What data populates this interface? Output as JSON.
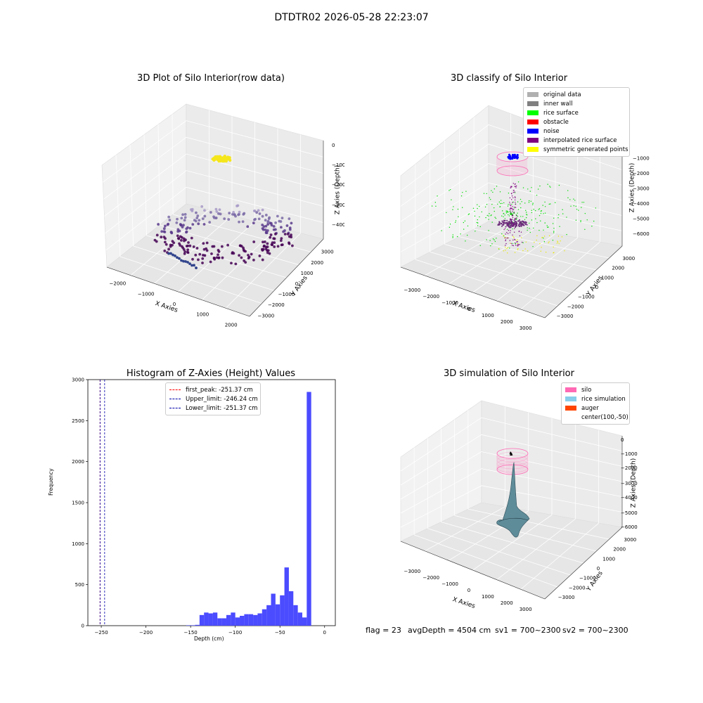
{
  "figure_title": "DTDTR02 2026-05-28 22:23:07",
  "panels": {
    "raw": {
      "title": "3D Plot of Silo Interior(row data)",
      "x_label": "X Axies",
      "y_label": "Y Axies",
      "z_label": "Z Axies (Depth)",
      "x_ticks": [
        "−2000",
        "−1000",
        "0",
        "1000",
        "2000"
      ],
      "y_ticks": [
        "−3000",
        "−2000",
        "−1000",
        "0",
        "1000",
        "2000",
        "3000"
      ],
      "z_ticks": [
        "0",
        "−1000",
        "−2000",
        "−3000",
        "−4000"
      ]
    },
    "classify": {
      "title": "3D classify of Silo Interior",
      "x_label": "X Axies",
      "y_label": "Y Axies",
      "z_label": "Z Axies (Depth)",
      "x_ticks": [
        "−3000",
        "−2000",
        "−1000",
        "0",
        "1000",
        "2000",
        "3000"
      ],
      "y_ticks": [
        "−3000",
        "−2000",
        "−1000",
        "0",
        "1000",
        "2000",
        "3000"
      ],
      "z_ticks": [
        "0",
        "−1000",
        "−2000",
        "−3000",
        "−4000",
        "−5000",
        "−6000"
      ],
      "legend": [
        {
          "label": "original data",
          "color": "#b0b0b0"
        },
        {
          "label": "inner wall",
          "color": "#808080"
        },
        {
          "label": "rice surface",
          "color": "#00ff00"
        },
        {
          "label": "obstacle",
          "color": "#ff0000"
        },
        {
          "label": "noise",
          "color": "#0000ff"
        },
        {
          "label": "interpolated rice surface",
          "color": "#800080"
        },
        {
          "label": "symmetric generated points",
          "color": "#ffff00"
        }
      ]
    },
    "simulation": {
      "title": "3D simulation of Silo Interior",
      "x_label": "X Axies",
      "y_label": "Y Axies",
      "z_label": "Z Axies (Depth)",
      "x_ticks": [
        "−3000",
        "−2000",
        "−1000",
        "0",
        "1000",
        "2000",
        "3000"
      ],
      "y_ticks": [
        "−3000",
        "−2000",
        "−1000",
        "0",
        "1000",
        "2000",
        "3000"
      ],
      "z_ticks": [
        "0",
        "−1000",
        "−2000",
        "−3000",
        "−4000",
        "−5000",
        "−6000"
      ],
      "legend": [
        {
          "label": "silo",
          "color": "#ff69b4"
        },
        {
          "label": "rice simulation",
          "color": "#87ceeb"
        },
        {
          "label": "auger",
          "color": "#ff4500"
        },
        {
          "label": "center(100,-50)",
          "color": ""
        }
      ]
    }
  },
  "footer": {
    "flag": "flag = 23",
    "avg_depth": "avgDepth = 4504 cm",
    "sv1": "sv1 = 700~2300",
    "sv2": "sv2 = 700~2300"
  },
  "chart_data": [
    {
      "type": "scatter3d",
      "title": "3D Plot of Silo Interior(row data)",
      "xlabel": "X Axies",
      "ylabel": "Y Axies",
      "zlabel": "Z Axies (Depth)",
      "xlim": [
        -2500,
        2500
      ],
      "ylim": [
        -3000,
        3000
      ],
      "zlim": [
        -4500,
        0
      ],
      "colormap": "viridis by depth"
    },
    {
      "type": "scatter3d",
      "title": "3D classify of Silo Interior",
      "xlabel": "X Axies",
      "ylabel": "Y Axies",
      "zlabel": "Z Axies (Depth)",
      "xlim": [
        -3000,
        3000
      ],
      "ylim": [
        -3000,
        3000
      ],
      "zlim": [
        -6500,
        0
      ],
      "series": [
        {
          "name": "original data"
        },
        {
          "name": "inner wall"
        },
        {
          "name": "rice surface"
        },
        {
          "name": "obstacle"
        },
        {
          "name": "noise"
        },
        {
          "name": "interpolated rice surface"
        },
        {
          "name": "symmetric generated points"
        }
      ],
      "legend_position": "upper right"
    },
    {
      "type": "bar",
      "title": "Histogram of Z-Axies (Height) Values",
      "xlabel": "Depth (cm)",
      "ylabel": "Frequency",
      "xlim": [
        -265,
        12
      ],
      "ylim": [
        0,
        3000
      ],
      "x_ticks": [
        -250,
        -200,
        -150,
        -100,
        -50,
        0
      ],
      "y_ticks": [
        0,
        500,
        1000,
        1500,
        2000,
        2500,
        3000
      ],
      "bin_width": 5,
      "bins": [
        {
          "x0": -155,
          "count": 5
        },
        {
          "x0": -150,
          "count": 5
        },
        {
          "x0": -145,
          "count": 10
        },
        {
          "x0": -140,
          "count": 130
        },
        {
          "x0": -135,
          "count": 160
        },
        {
          "x0": -130,
          "count": 150
        },
        {
          "x0": -125,
          "count": 160
        },
        {
          "x0": -120,
          "count": 90
        },
        {
          "x0": -115,
          "count": 90
        },
        {
          "x0": -110,
          "count": 130
        },
        {
          "x0": -105,
          "count": 160
        },
        {
          "x0": -100,
          "count": 100
        },
        {
          "x0": -95,
          "count": 120
        },
        {
          "x0": -90,
          "count": 140
        },
        {
          "x0": -85,
          "count": 140
        },
        {
          "x0": -80,
          "count": 130
        },
        {
          "x0": -75,
          "count": 150
        },
        {
          "x0": -70,
          "count": 200
        },
        {
          "x0": -65,
          "count": 250
        },
        {
          "x0": -60,
          "count": 390
        },
        {
          "x0": -55,
          "count": 260
        },
        {
          "x0": -50,
          "count": 370
        },
        {
          "x0": -45,
          "count": 710
        },
        {
          "x0": -40,
          "count": 420
        },
        {
          "x0": -35,
          "count": 250
        },
        {
          "x0": -30,
          "count": 160
        },
        {
          "x0": -25,
          "count": 100
        },
        {
          "x0": -20,
          "count": 2850
        }
      ],
      "bar_color": "#4b4bff",
      "vlines": [
        {
          "label": "first_peak: -251.37 cm",
          "x": -251.37,
          "color": "#ff0000"
        },
        {
          "label": "Upper_limit: -246.24 cm",
          "x": -246.24,
          "color": "#0000aa"
        },
        {
          "label": "Lower_limit: -251.37 cm",
          "x": -251.37,
          "color": "#0000aa"
        }
      ],
      "legend_position": "upper center"
    },
    {
      "type": "surface3d",
      "title": "3D simulation of Silo Interior",
      "xlabel": "X Axies",
      "ylabel": "Y Axies",
      "zlabel": "Z Axies (Depth)",
      "xlim": [
        -3000,
        3000
      ],
      "ylim": [
        -3000,
        3000
      ],
      "zlim": [
        -6500,
        0
      ],
      "series": [
        {
          "name": "silo"
        },
        {
          "name": "rice simulation"
        },
        {
          "name": "auger"
        }
      ]
    }
  ]
}
